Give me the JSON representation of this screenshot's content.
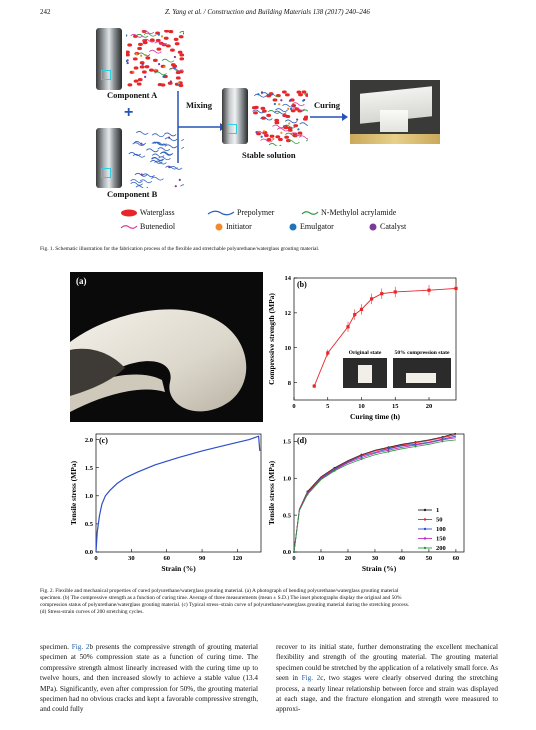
{
  "header": {
    "page_number": "242",
    "journal": "Z. Yang et al. / Construction and Building Materials 138 (2017) 240–246"
  },
  "fig1": {
    "component_a": "Component A",
    "component_b": "Component B",
    "mixing": "Mixing",
    "curing": "Curing",
    "stable_solution": "Stable solution",
    "legend": [
      {
        "key": "waterglass",
        "label": "Waterglass",
        "color": "#e8262a"
      },
      {
        "key": "prepolymer",
        "label": "Prepolymer",
        "color": "#2c5fbf"
      },
      {
        "key": "nma",
        "label": "N-Methylol acrylamide",
        "color": "#2a9a3a"
      },
      {
        "key": "butenediol",
        "label": "Butenediol",
        "color": "#d63ea0"
      },
      {
        "key": "initiator",
        "label": "Initiator",
        "color": "#f08a2a"
      },
      {
        "key": "emulgator",
        "label": "Emulgator",
        "color": "#1e73be"
      },
      {
        "key": "catalyst",
        "label": "Catalyst",
        "color": "#7a3a9a"
      }
    ],
    "caption": "Fig. 1. Schematic illustration for the fabrication process of the flexible and stretchable polyurethane/waterglass grouting material."
  },
  "fig2": {
    "panel_a_label": "(a)",
    "panel_b": {
      "label": "(b)",
      "inset_left": "Original state",
      "inset_right": "50% compression state"
    },
    "panel_c_label": "(c)",
    "panel_d_label": "(d)",
    "caption_lines": [
      "Fig. 2. Flexible and mechanical properties of cured polyurethane/waterglass grouting material. (a) A photograph of bending polyurethane/waterglass grouting material",
      "specimen. (b) The compressive strength as a function of curing time. Average of three measurements (mean ± S.D.) The inset photographs display the original and 50%",
      "compression status of polyurethane/waterglass grouting material. (c) Typical stress–strain curve of polyurethane/waterglass grouting material during the stretching process.",
      "(d) Stress-strain curves of 200 stretching cycles."
    ]
  },
  "chart_data": [
    {
      "type": "scatter",
      "title": "",
      "xlabel": "Curing time (h)",
      "ylabel": "Compressive strength (MPa)",
      "xlim": [
        0,
        24
      ],
      "ylim": [
        7,
        14
      ],
      "xticks": [
        0,
        5,
        10,
        15,
        20,
        25
      ],
      "yticks": [
        8,
        10,
        12,
        14
      ],
      "x": [
        3,
        5,
        8,
        9,
        10,
        11.5,
        13,
        15,
        20,
        24
      ],
      "y": [
        7.8,
        9.7,
        11.2,
        11.9,
        12.2,
        12.8,
        13.1,
        13.2,
        13.3,
        13.4
      ],
      "error": [
        0.1,
        0.2,
        0.3,
        0.3,
        0.3,
        0.3,
        0.3,
        0.3,
        0.3,
        0.3
      ],
      "color": "#e8262a"
    },
    {
      "type": "line",
      "title": "",
      "xlabel": "Strain (%)",
      "ylabel": "Tensile stress (MPa)",
      "xlim": [
        0,
        140
      ],
      "ylim": [
        0,
        2.1
      ],
      "xticks": [
        0,
        30,
        60,
        90,
        120
      ],
      "yticks": [
        0.0,
        0.5,
        1.0,
        1.5,
        2.0
      ],
      "x": [
        0,
        1,
        3,
        5,
        8,
        12,
        18,
        25,
        35,
        50,
        70,
        90,
        110,
        130,
        138,
        139
      ],
      "y": [
        0,
        0.35,
        0.65,
        0.85,
        1.0,
        1.1,
        1.22,
        1.32,
        1.42,
        1.55,
        1.68,
        1.8,
        1.9,
        2.0,
        2.06,
        1.8
      ],
      "color": "#2e4fc9"
    },
    {
      "type": "line",
      "title": "",
      "xlabel": "Strain (%)",
      "ylabel": "Tensile stress (MPa)",
      "xlim": [
        0,
        63
      ],
      "ylim": [
        0,
        1.6
      ],
      "xticks": [
        0,
        10,
        20,
        30,
        40,
        50,
        60
      ],
      "yticks": [
        0.0,
        0.5,
        1.0,
        1.5
      ],
      "x": [
        0,
        2,
        5,
        10,
        15,
        20,
        25,
        30,
        35,
        40,
        45,
        50,
        55,
        60
      ],
      "series": [
        {
          "name": "1",
          "color": "#222222",
          "values": [
            0,
            0.58,
            0.82,
            1.02,
            1.14,
            1.24,
            1.32,
            1.38,
            1.42,
            1.46,
            1.49,
            1.52,
            1.56,
            1.61
          ]
        },
        {
          "name": "50",
          "color": "#e8262a",
          "values": [
            0,
            0.58,
            0.81,
            1.01,
            1.13,
            1.23,
            1.31,
            1.37,
            1.41,
            1.45,
            1.48,
            1.51,
            1.55,
            1.59
          ]
        },
        {
          "name": "100",
          "color": "#2e4fc9",
          "values": [
            0,
            0.57,
            0.8,
            1.0,
            1.12,
            1.22,
            1.3,
            1.35,
            1.4,
            1.44,
            1.46,
            1.49,
            1.53,
            1.57
          ]
        },
        {
          "name": "150",
          "color": "#c02ac0",
          "values": [
            0,
            0.57,
            0.79,
            0.99,
            1.11,
            1.21,
            1.28,
            1.34,
            1.38,
            1.42,
            1.45,
            1.48,
            1.52,
            1.55
          ]
        },
        {
          "name": "200",
          "color": "#2a9a3a",
          "values": [
            0,
            0.56,
            0.78,
            0.98,
            1.1,
            1.19,
            1.26,
            1.32,
            1.36,
            1.4,
            1.43,
            1.46,
            1.5,
            1.52
          ]
        }
      ]
    }
  ],
  "body": {
    "left_pre": "specimen. ",
    "left_ref": "Fig. 2",
    "left_post": "b presents the compressive strength of grouting material specimen at 50% compression state as a function of curing time. The compressive strength almost linearly increased with the curing time up to twelve hours, and then increased slowly to achieve a stable value (13.4 MPa). Significantly, even after compression for 50%, the grouting material specimen had no obvious cracks and kept a favorable compressive strength, and could fully",
    "right_pre": "recover to its initial state, further demonstrating the excellent mechanical flexibility and strength of the grouting material. The grouting material specimen could be stretched by the application of a relatively small force. As seen in ",
    "right_ref": "Fig. 2",
    "right_post": "c, two stages were clearly observed during the stretching process, a nearly linear relationship between force and strain was displayed at each stage, and the fracture elongation and strength were measured to approxi-"
  }
}
